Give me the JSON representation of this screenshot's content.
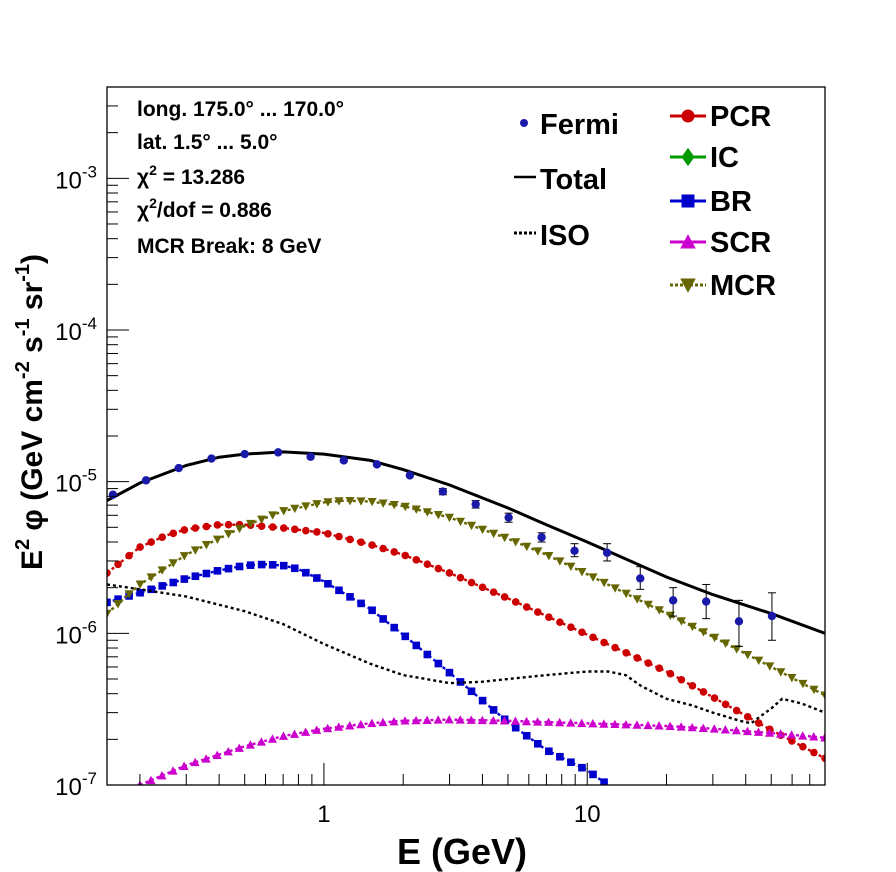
{
  "chart_data": {
    "type": "scatter",
    "x_axis": {
      "label": "E (GeV)",
      "scale": "log",
      "range": [
        0.15,
        80
      ],
      "tick_labels": [
        "1",
        "10"
      ]
    },
    "y_axis": {
      "label_parts": [
        "E",
        "2",
        "  φ (GeV cm",
        "-2",
        " s",
        "-1",
        " sr",
        "-1",
        ")"
      ],
      "scale": "log",
      "range": [
        1e-07,
        0.004
      ],
      "tick_labels": [
        {
          "base": "10",
          "exp": "-7"
        },
        {
          "base": "10",
          "exp": "-6"
        },
        {
          "base": "10",
          "exp": "-5"
        },
        {
          "base": "10",
          "exp": "-4"
        },
        {
          "base": "10",
          "exp": "-3"
        }
      ]
    },
    "info_lines": [
      "long. 175.0° ... 170.0°",
      "lat. 1.5° ... 5.0°",
      {
        "pre": "χ",
        "sup": "2",
        "post": " = 13.286"
      },
      {
        "pre": "χ",
        "sup": "2",
        "post": "/dof = 0.886"
      },
      "MCR Break:  8 GeV"
    ],
    "legend_left": [
      {
        "label": "Fermi",
        "style": "dot"
      },
      {
        "label": "Total",
        "style": "line"
      },
      {
        "label": "ISO",
        "style": "dotted"
      }
    ],
    "legend_right": [
      {
        "label": "PCR",
        "color": "#cc0000",
        "marker": "circle"
      },
      {
        "label": "IC",
        "color": "#009900",
        "marker": "diamond"
      },
      {
        "label": "BR",
        "color": "#0000cc",
        "marker": "square"
      },
      {
        "label": "SCR",
        "color": "#cc00cc",
        "marker": "triangle-up"
      },
      {
        "label": "MCR",
        "color": "#666600",
        "marker": "triangle-down"
      }
    ],
    "fermi": {
      "color": "#1a1aaa",
      "points": [
        {
          "x": 0.158,
          "y": 8.2e-06
        },
        {
          "x": 0.211,
          "y": 1.02e-05
        },
        {
          "x": 0.281,
          "y": 1.23e-05
        },
        {
          "x": 0.374,
          "y": 1.42e-05
        },
        {
          "x": 0.5,
          "y": 1.52e-05
        },
        {
          "x": 0.67,
          "y": 1.56e-05
        },
        {
          "x": 0.89,
          "y": 1.46e-05
        },
        {
          "x": 1.19,
          "y": 1.38e-05
        },
        {
          "x": 1.59,
          "y": 1.3e-05
        },
        {
          "x": 2.12,
          "y": 1.1e-05
        },
        {
          "x": 2.83,
          "y": 8.6e-06,
          "err": [
            8.2e-06,
            9e-06
          ]
        },
        {
          "x": 3.77,
          "y": 7.1e-06,
          "err": [
            6.7e-06,
            7.5e-06
          ]
        },
        {
          "x": 5.03,
          "y": 5.8e-06,
          "err": [
            5.4e-06,
            6.2e-06
          ]
        },
        {
          "x": 6.71,
          "y": 4.3e-06,
          "err": [
            4e-06,
            4.6e-06
          ]
        },
        {
          "x": 8.95,
          "y": 3.5e-06,
          "err": [
            3.2e-06,
            3.9e-06
          ]
        },
        {
          "x": 11.9,
          "y": 3.4e-06,
          "err": [
            3e-06,
            3.9e-06
          ]
        },
        {
          "x": 15.9,
          "y": 2.3e-06,
          "err": [
            1.95e-06,
            2.75e-06
          ]
        },
        {
          "x": 21.2,
          "y": 1.65e-06,
          "err": [
            1.3e-06,
            2e-06
          ]
        },
        {
          "x": 28.3,
          "y": 1.62e-06,
          "err": [
            1.25e-06,
            2.1e-06
          ]
        },
        {
          "x": 37.7,
          "y": 1.2e-06,
          "err": [
            8.2e-07,
            1.65e-06
          ]
        },
        {
          "x": 50.3,
          "y": 1.3e-06,
          "err": [
            9e-07,
            1.85e-06
          ]
        }
      ]
    },
    "series": [
      {
        "name": "Total",
        "color": "#000000",
        "style": "solid",
        "x": [
          0.15,
          0.2,
          0.3,
          0.4,
          0.5,
          0.7,
          1.0,
          1.5,
          2.0,
          3.0,
          5.0,
          7.0,
          10,
          20,
          30,
          50,
          80
        ],
        "y": [
          7.5e-06,
          9.8e-06,
          1.28e-05,
          1.45e-05,
          1.52e-05,
          1.57e-05,
          1.52e-05,
          1.38e-05,
          1.2e-05,
          9.5e-06,
          6.7e-06,
          5.2e-06,
          4e-06,
          2.35e-06,
          1.8e-06,
          1.35e-06,
          1e-06
        ]
      },
      {
        "name": "PCR",
        "color": "#cc0000",
        "marker": "circle",
        "x": [
          0.15,
          0.2,
          0.25,
          0.3,
          0.4,
          0.5,
          0.7,
          1.0,
          1.5,
          2.0,
          3.0,
          5.0,
          7.0,
          10,
          20,
          30,
          50,
          80
        ],
        "y": [
          2.5e-06,
          3.7e-06,
          4.4e-06,
          4.85e-06,
          5.2e-06,
          5.2e-06,
          4.95e-06,
          4.6e-06,
          3.85e-06,
          3.3e-06,
          2.5e-06,
          1.7e-06,
          1.3e-06,
          9.8e-07,
          5.6e-07,
          3.8e-07,
          2.3e-07,
          1.5e-07
        ]
      },
      {
        "name": "BR",
        "color": "#0000cc",
        "marker": "square",
        "x": [
          0.15,
          0.2,
          0.3,
          0.4,
          0.5,
          0.6,
          0.7,
          0.8,
          1.0,
          1.5,
          2.0,
          3.0,
          5.0,
          7.0,
          10,
          12
        ],
        "y": [
          1.6e-06,
          1.85e-06,
          2.3e-06,
          2.6e-06,
          2.8e-06,
          2.85e-06,
          2.8e-06,
          2.65e-06,
          2.2e-06,
          1.45e-06,
          9.8e-07,
          5.5e-07,
          2.6e-07,
          1.7e-07,
          1.25e-07,
          1e-07
        ]
      },
      {
        "name": "SCR",
        "color": "#cc00cc",
        "marker": "triangle-up",
        "x": [
          0.2,
          0.3,
          0.5,
          0.7,
          1.0,
          1.5,
          2.0,
          3.0,
          5.0,
          7.0,
          10,
          20,
          30,
          50,
          80
        ],
        "y": [
          1e-07,
          1.35e-07,
          1.8e-07,
          2.1e-07,
          2.35e-07,
          2.55e-07,
          2.65e-07,
          2.7e-07,
          2.65e-07,
          2.6e-07,
          2.55e-07,
          2.45e-07,
          2.35e-07,
          2.2e-07,
          2.05e-07
        ]
      },
      {
        "name": "MCR",
        "color": "#666600",
        "marker": "triangle-down",
        "x": [
          0.15,
          0.2,
          0.3,
          0.5,
          0.7,
          1.0,
          1.2,
          1.5,
          2.0,
          3.0,
          5.0,
          7.0,
          10,
          20,
          30,
          50,
          80
        ],
        "y": [
          1.35e-06,
          2.1e-06,
          3.3e-06,
          5.1e-06,
          6.4e-06,
          7.3e-06,
          7.5e-06,
          7.4e-06,
          6.9e-06,
          5.8e-06,
          4.2e-06,
          3.3e-06,
          2.45e-06,
          1.35e-06,
          9.5e-07,
          6e-07,
          3.9e-07
        ]
      },
      {
        "name": "ISO",
        "color": "#000000",
        "style": "dotted",
        "x": [
          0.15,
          0.2,
          0.3,
          0.5,
          0.7,
          1.0,
          1.5,
          2.0,
          3.0,
          4.0,
          5.0,
          7.0,
          10,
          12,
          14,
          16,
          20,
          25,
          30,
          38,
          42,
          45,
          50,
          55,
          65,
          80
        ],
        "y": [
          2.1e-06,
          1.95e-06,
          1.75e-06,
          1.4e-06,
          1.15e-06,
          8.5e-07,
          6.3e-07,
          5.3e-07,
          4.7e-07,
          4.8e-07,
          5e-07,
          5.3e-07,
          5.6e-07,
          5.6e-07,
          5.3e-07,
          4.5e-07,
          3.7e-07,
          3.35e-07,
          3e-07,
          2.65e-07,
          2.55e-07,
          2.8e-07,
          3.2e-07,
          3.7e-07,
          3.45e-07,
          3e-07
        ]
      }
    ]
  }
}
